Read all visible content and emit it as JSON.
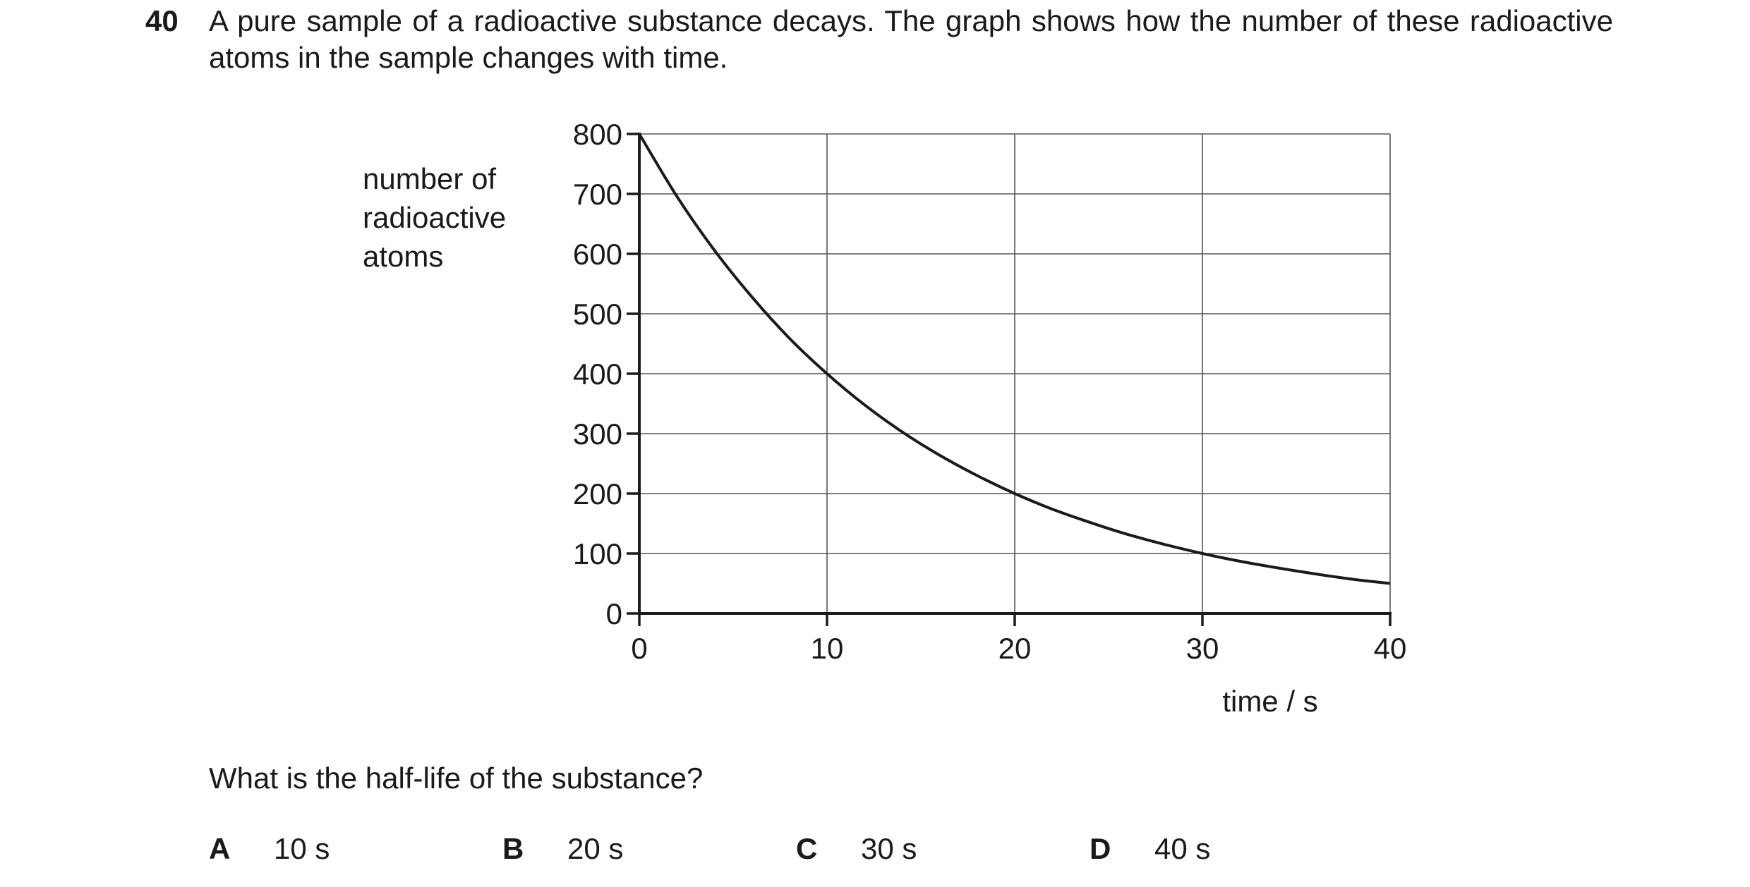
{
  "question": {
    "number": "40",
    "stem": "A pure sample of a radioactive substance decays. The graph shows how the number of these radioactive atoms in the sample changes with time.",
    "prompt": "What is the half-life of the substance?",
    "options": [
      {
        "letter": "A",
        "text": "10 s"
      },
      {
        "letter": "B",
        "text": "20 s"
      },
      {
        "letter": "C",
        "text": "30 s"
      },
      {
        "letter": "D",
        "text": "40 s"
      }
    ]
  },
  "chart_data": {
    "type": "line",
    "title": "",
    "xlabel": "time / s",
    "ylabel": "number of radioactive atoms",
    "xlim": [
      0,
      40
    ],
    "ylim": [
      0,
      800
    ],
    "xticks": [
      0,
      10,
      20,
      30,
      40
    ],
    "yticks": [
      0,
      100,
      200,
      300,
      400,
      500,
      600,
      700,
      800
    ],
    "grid": true,
    "series": [
      {
        "x": [
          0,
          2,
          4,
          6,
          8,
          10,
          12,
          14,
          16,
          18,
          20,
          22,
          24,
          26,
          28,
          30,
          32,
          34,
          36,
          38,
          40
        ],
        "y": [
          800,
          696,
          606,
          528,
          459,
          400,
          348,
          303,
          264,
          230,
          200,
          174,
          152,
          132,
          115,
          100,
          87,
          76,
          66,
          57,
          50
        ]
      }
    ],
    "line_color": "#1a1a1a",
    "grid_color": "#555555"
  }
}
